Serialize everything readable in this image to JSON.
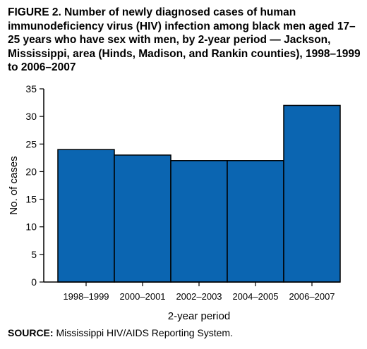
{
  "figure": {
    "title": "FIGURE 2. Number of newly diagnosed cases of human immunodeficiency virus (HIV) infection among black men aged 17–25 years who have sex with men, by 2-year period — Jackson, Mississippi, area (Hinds, Madison, and Rankin counties), 1998–1999 to 2006–2007",
    "source_label": "SOURCE:",
    "source_text": " Mississippi HIV/AIDS Reporting System."
  },
  "chart_data": {
    "type": "bar",
    "title": "",
    "xlabel": "2-year period",
    "ylabel": "No. of cases",
    "categories": [
      "1998–1999",
      "2000–2001",
      "2002–2003",
      "2004–2005",
      "2006–2007"
    ],
    "values": [
      24,
      23,
      22,
      22,
      32
    ],
    "ylim": [
      0,
      35
    ],
    "yticks": [
      0,
      5,
      10,
      15,
      20,
      25,
      30,
      35
    ],
    "bar_color": "#0b65b1",
    "grid": false,
    "legend": "none"
  }
}
